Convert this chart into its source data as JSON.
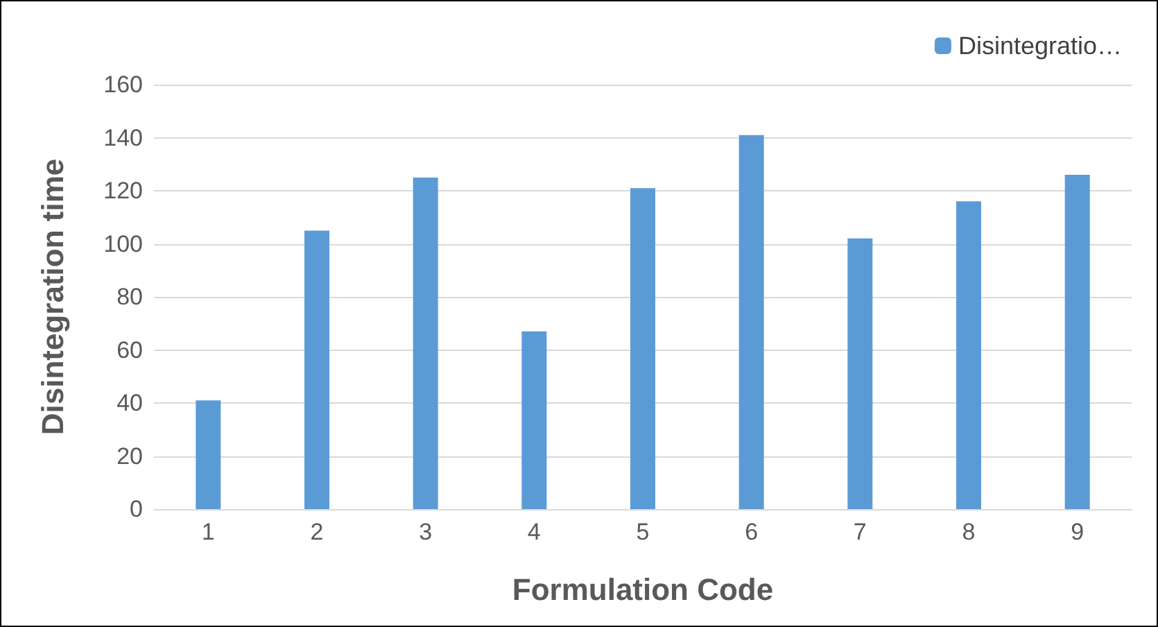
{
  "chart_data": {
    "type": "bar",
    "xlabel": "Formulation Code",
    "ylabel": "Disintegration time",
    "categories": [
      "1",
      "2",
      "3",
      "4",
      "5",
      "6",
      "7",
      "8",
      "9"
    ],
    "series": [
      {
        "name": "Disintegratio…",
        "color": "#5b9bd5",
        "values": [
          41,
          105,
          125,
          67,
          121,
          141,
          102,
          116,
          126
        ]
      }
    ],
    "ylim": [
      0,
      160
    ],
    "yticks": [
      0,
      20,
      40,
      60,
      80,
      100,
      120,
      140,
      160
    ],
    "grid": "y",
    "legend": "top right"
  }
}
